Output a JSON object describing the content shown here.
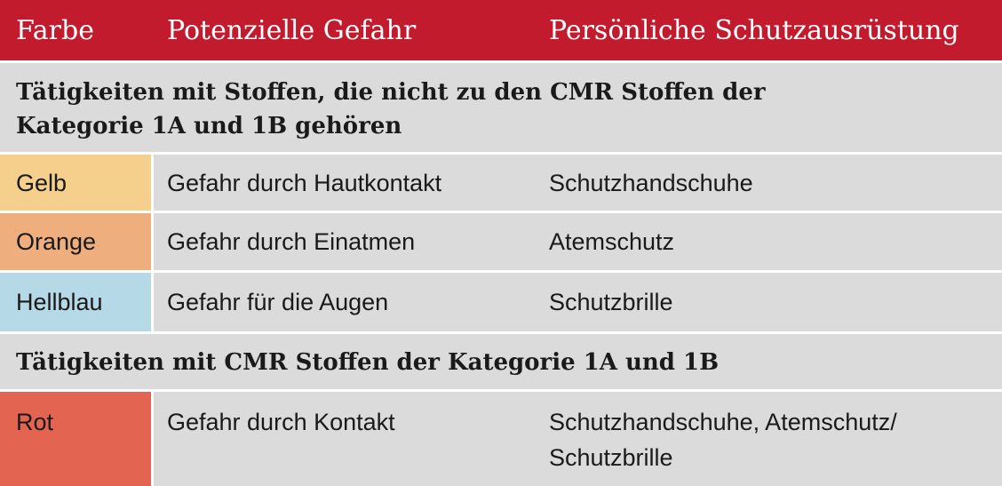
{
  "colors": {
    "header_bg": "#c21b2e",
    "row_bg": "#dbdbdb",
    "gelb": "#f4d08c",
    "orange": "#eeae7d",
    "hellblau": "#b5d9e6",
    "rot": "#e36450"
  },
  "header": {
    "col1": "Farbe",
    "col2": "Potenzielle Gefahr",
    "col3": "Persönliche Schutzausrüstung"
  },
  "section1": {
    "title": "Tätigkeiten mit Stoffen, die nicht zu den CMR Stoffen der Kategorie 1A und 1B gehören"
  },
  "rows": [
    {
      "farbe": "Gelb",
      "gefahr": "Gefahr durch Hautkontakt",
      "schutz": "Schutzhandschuhe"
    },
    {
      "farbe": "Orange",
      "gefahr": "Gefahr durch Einatmen",
      "schutz": "Atemschutz"
    },
    {
      "farbe": "Hellblau",
      "gefahr": "Gefahr für die Augen",
      "schutz": "Schutzbrille"
    }
  ],
  "section2": {
    "title": "Tätigkeiten mit CMR Stoffen der Kategorie 1A und 1B"
  },
  "cmr_row": {
    "farbe": "Rot",
    "gefahr": "Gefahr durch Kontakt",
    "schutz": "Schutzhandschuhe, Atemschutz/ Schutzbrille"
  }
}
